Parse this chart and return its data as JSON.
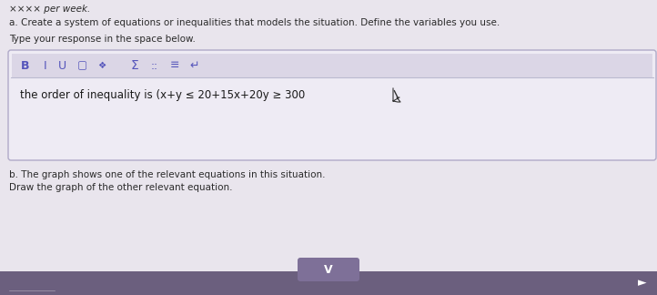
{
  "bg_color": "#e9e5ed",
  "text_top_partial": "××× per week.",
  "text_a": "a. Create a system of equations or inequalities that models the situation. Define the variables you use.",
  "text_type_response": "Type your response in the space below.",
  "answer_text": "the order of inequality is (x+y ≤ 20+15x+20y ≥ 300",
  "text_b1": "b. The graph shows one of the relevant equations in this situation.",
  "text_b2": "Draw the graph of the other relevant equation.",
  "text_color": "#2a2a2a",
  "text_color_light": "#555555",
  "box_bg": "#eeebf4",
  "box_border": "#b0aac8",
  "toolbar_bg": "#dbd6e6",
  "toolbar_sep": "#bbbad0",
  "toolbar_icon_color": "#5555bb",
  "answer_color": "#1a1a1a",
  "bottom_bar_color": "#6b5f7e",
  "bottom_btn_color": "#7e7098",
  "bottom_btn_lighter": "#8a7ea8"
}
